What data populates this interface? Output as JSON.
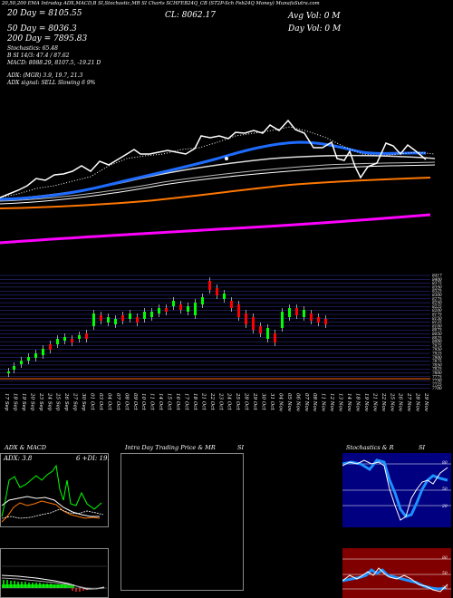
{
  "header": {
    "top_line": "20,50,200 EMA  Intraday ADX,MACD,B  SI,Stochastic,MR   SI Charts SCHFEB24Q_CB   (ST2P-Sch Feb24Q Money) MunafaSutra.com",
    "cl_label": "CL: 8062.17",
    "ema20": "20 Day = 8105.55",
    "ema50": "50 Day = 8036.3",
    "ema200": "200 Day = 7895.83",
    "stochastics": "Stochastics: 65.48",
    "si": "B    SI 14/3: 47.4 / 87.62",
    "macd": "MACD: 8088.29, 8107.5, -19.21 D",
    "adx": "ADX:                           (MGR) 3.9, 19.7, 21.3",
    "adx_signal": "ADX  signal: SELL  Slowing 6 9%",
    "avg_vol": "Avg Vol:  0  M",
    "day_vol": "Day Vol: 0   M"
  },
  "price_axis": [
    "8417",
    "8400",
    "8375",
    "8350",
    "8325",
    "8300",
    "8275",
    "8250",
    "8225",
    "8200",
    "8175",
    "8150",
    "8125",
    "8100",
    "8075",
    "8050",
    "8025",
    "8000",
    "7975",
    "7950",
    "7925",
    "7900",
    "7875",
    "7850",
    "7825",
    "7800",
    "7775",
    "7750",
    "7725",
    "7700"
  ],
  "dates": [
    "17 Sep",
    "18 Sep",
    "19 Sep",
    "20 Sep",
    "23 Sep",
    "24 Sep",
    "25 Sep",
    "26 Sep",
    "27 Sep",
    "30 Sep",
    "01 Oct",
    "03 Oct",
    "04 Oct",
    "07 Oct",
    "08 Oct",
    "09 Oct",
    "10 Oct",
    "11 Oct",
    "14 Oct",
    "15 Oct",
    "16 Oct",
    "17 Oct",
    "18 Oct",
    "21 Oct",
    "22 Oct",
    "23 Oct",
    "24 Oct",
    "25 Oct",
    "28 Oct",
    "29 Oct",
    "30 Oct",
    "31 Oct",
    "04 Nov",
    "05 Nov",
    "06 Nov",
    "07 Nov",
    "08 Nov",
    "11 Nov",
    "12 Nov",
    "13 Nov",
    "14 Nov",
    "18 Nov",
    "19 Nov",
    "21 Nov",
    "22 Nov",
    "25 Nov",
    "26 Nov",
    "27 Nov",
    "28 Nov",
    "29 Nov"
  ],
  "panels": {
    "adx_macd": {
      "title": "ADX  & MACD",
      "adx_value": "ADX: 3.8",
      "extra": "6     +DI: 19.6"
    },
    "intraday": {
      "title": "Intra  Day Trading Price  & MR",
      "suffix": "SI"
    },
    "stoch": {
      "title": "Stochastics & R",
      "suffix": "SI"
    }
  },
  "stoch_axis": [
    "80",
    "50",
    "20"
  ],
  "rsi_axis": [
    "80",
    "50",
    "20"
  ],
  "colors": {
    "background": "#000000",
    "ema20": "#1e6cff",
    "ema50": "#ffffff",
    "ema200": "#ff6600",
    "ema_long": "#ff00ff",
    "up_candle": "#00ff00",
    "down_candle": "#ff0000",
    "stoch_bg": "#000080",
    "rsi_bg": "#800000"
  }
}
